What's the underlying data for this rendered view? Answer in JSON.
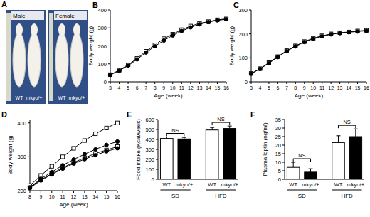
{
  "panel_a": {
    "label": "A",
    "panels": [
      {
        "title": "Male",
        "labels": [
          "WT",
          "mkyo/+"
        ]
      },
      {
        "title": "Female",
        "labels": [
          "WT",
          "mkyo/+"
        ]
      }
    ]
  },
  "chart_data": [
    {
      "type": "line",
      "title": "B",
      "x_label": "Age (week)",
      "y_label": "Body weight (g)",
      "x": [
        3,
        4,
        5,
        6,
        7,
        8,
        9,
        10,
        11,
        12,
        13,
        14,
        15,
        16
      ],
      "series": [
        {
          "color": "#000000",
          "marker": "square",
          "values": [
            40,
            65,
            95,
            130,
            170,
            205,
            240,
            265,
            290,
            310,
            325,
            335,
            345,
            350
          ]
        },
        {
          "color": "#000000",
          "marker": "circle",
          "values": [
            38,
            62,
            90,
            125,
            163,
            198,
            230,
            258,
            283,
            303,
            320,
            332,
            342,
            348
          ]
        }
      ],
      "xlim": [
        3,
        16
      ],
      "xticks": [
        3,
        4,
        5,
        6,
        7,
        8,
        9,
        10,
        11,
        12,
        13,
        14,
        15,
        16
      ],
      "ylim": [
        0,
        400
      ],
      "yticks": [
        0,
        100,
        200,
        300,
        400
      ]
    },
    {
      "type": "line",
      "title": "C",
      "x_label": "Age (week)",
      "y_label": "Body weight (g)",
      "x": [
        3,
        4,
        5,
        6,
        7,
        8,
        9,
        10,
        11,
        12,
        13,
        14,
        15,
        16
      ],
      "series": [
        {
          "color": "#000000",
          "marker": "square",
          "values": [
            35,
            55,
            80,
            105,
            130,
            150,
            168,
            182,
            192,
            200,
            205,
            208,
            212,
            215
          ]
        },
        {
          "color": "#000000",
          "marker": "circle",
          "values": [
            34,
            54,
            78,
            103,
            128,
            148,
            166,
            180,
            190,
            198,
            203,
            207,
            210,
            213
          ]
        }
      ],
      "xlim": [
        3,
        16
      ],
      "xticks": [
        3,
        4,
        5,
        6,
        7,
        8,
        9,
        10,
        11,
        12,
        13,
        14,
        15,
        16
      ],
      "ylim": [
        0,
        300
      ],
      "yticks": [
        0,
        100,
        200,
        300
      ]
    },
    {
      "type": "line",
      "title": "D",
      "x_label": "Age (week)",
      "y_label": "Body weight (g)",
      "x": [
        8,
        9,
        10,
        11,
        12,
        13,
        14,
        15,
        16
      ],
      "series": [
        {
          "color": "#000000",
          "marker": "square",
          "values": [
            210,
            232,
            250,
            268,
            283,
            297,
            310,
            320,
            330
          ]
        },
        {
          "color": "#000000",
          "marker": "circle",
          "values": [
            208,
            230,
            248,
            265,
            280,
            293,
            305,
            316,
            325
          ]
        },
        {
          "color": "#000000",
          "marker": "square",
          "values": [
            215,
            245,
            272,
            300,
            325,
            348,
            368,
            385,
            400
          ]
        },
        {
          "color": "#000000",
          "marker": "circle",
          "values": [
            210,
            235,
            255,
            275,
            292,
            308,
            322,
            335,
            345
          ]
        }
      ],
      "xlim": [
        8,
        16
      ],
      "xticks": [
        8,
        9,
        10,
        11,
        12,
        13,
        14,
        15,
        16
      ],
      "ylim": [
        200,
        410
      ],
      "yticks": [
        200,
        300,
        400
      ]
    },
    {
      "type": "bar",
      "title": "E",
      "y_label": "Food intake (Kcal/week)",
      "categories": [
        "WT",
        "mkyo/+",
        "WT",
        "mkyo/+"
      ],
      "groups": [
        "SD",
        "HFD"
      ],
      "values": [
        410,
        405,
        495,
        510
      ],
      "errors": [
        15,
        15,
        25,
        25
      ],
      "colors": [
        "#ffffff",
        "#000000",
        "#ffffff",
        "#000000"
      ],
      "annotations": [
        "NS",
        "NS"
      ],
      "ylim": [
        0,
        600
      ],
      "yticks": [
        0,
        100,
        200,
        300,
        400,
        500,
        600
      ]
    },
    {
      "type": "bar",
      "title": "F",
      "y_label": "Plasma leptin (ng/ml)",
      "categories": [
        "WT",
        "mkyo/+",
        "WT",
        "mkyo/+"
      ],
      "groups": [
        "SD",
        "HFD"
      ],
      "values": [
        7,
        4.2,
        21.5,
        25
      ],
      "errors": [
        3,
        2,
        4,
        4.5
      ],
      "colors": [
        "#ffffff",
        "#000000",
        "#ffffff",
        "#000000"
      ],
      "annotations": [
        "NS",
        "NS"
      ],
      "ylim": [
        0,
        35
      ],
      "yticks": [
        0,
        5,
        10,
        15,
        20,
        25,
        30,
        35
      ]
    }
  ]
}
